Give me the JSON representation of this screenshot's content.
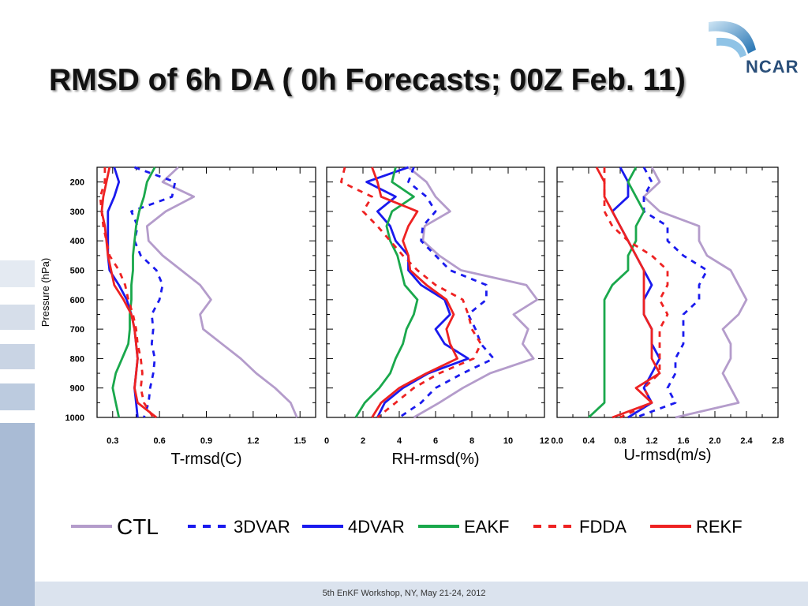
{
  "title": "RMSD of 6h DA ( 0h Forecasts; 00Z Feb. 11)",
  "logo_text": "NCAR",
  "footer": "5th EnKF Workshop, NY, May 21-24, 2012",
  "colors": {
    "CTL": "#b49ccb",
    "3DVAR": "#1a1aee",
    "4DVAR": "#1a1aee",
    "EAKF": "#1aa84c",
    "FDDA": "#ee2222",
    "REKF": "#ee2222"
  },
  "legend": [
    {
      "name": "CTL",
      "dash": false
    },
    {
      "name": "3DVAR",
      "dash": true
    },
    {
      "name": "4DVAR",
      "dash": false
    },
    {
      "name": "EAKF",
      "dash": false
    },
    {
      "name": "FDDA",
      "dash": true
    },
    {
      "name": "REKF",
      "dash": false
    }
  ],
  "chart_data": [
    {
      "type": "line",
      "xlabel": "T-rmsd(C)",
      "ylabel": "Pressure (hPa)",
      "xlim": [
        0.2,
        1.6
      ],
      "xticks": [
        "0.3",
        "0.6",
        "0.9",
        "1.2",
        "1.5"
      ],
      "xtick_values": [
        0.3,
        0.6,
        0.9,
        1.2,
        1.5
      ],
      "ylim": [
        150,
        1000
      ],
      "yticks": [
        "200",
        "300",
        "400",
        "500",
        "600",
        "700",
        "800",
        "900",
        "1000"
      ],
      "y": [
        150,
        200,
        250,
        300,
        350,
        400,
        450,
        500,
        550,
        600,
        650,
        700,
        750,
        800,
        850,
        900,
        950,
        1000
      ],
      "series": [
        {
          "name": "CTL",
          "values": [
            0.72,
            0.62,
            0.82,
            0.64,
            0.52,
            0.53,
            0.62,
            0.74,
            0.86,
            0.93,
            0.86,
            0.88,
            1.0,
            1.12,
            1.22,
            1.34,
            1.44,
            1.48
          ]
        },
        {
          "name": "3DVAR",
          "values": [
            0.44,
            0.7,
            0.68,
            0.42,
            0.46,
            0.44,
            0.48,
            0.58,
            0.62,
            0.6,
            0.55,
            0.56,
            0.55,
            0.57,
            0.56,
            0.54,
            0.53,
            0.5
          ]
        },
        {
          "name": "4DVAR",
          "values": [
            0.31,
            0.34,
            0.31,
            0.27,
            0.27,
            0.27,
            0.27,
            0.28,
            0.34,
            0.39,
            0.42,
            0.44,
            0.45,
            0.46,
            0.45,
            0.44,
            0.45,
            0.46
          ]
        },
        {
          "name": "EAKF",
          "values": [
            0.57,
            0.52,
            0.5,
            0.47,
            0.45,
            0.44,
            0.43,
            0.43,
            0.42,
            0.42,
            0.41,
            0.41,
            0.4,
            0.36,
            0.32,
            0.3,
            0.32,
            0.34
          ]
        },
        {
          "name": "FDDA",
          "values": [
            0.25,
            0.25,
            0.22,
            0.23,
            0.24,
            0.26,
            0.28,
            0.34,
            0.38,
            0.4,
            0.43,
            0.45,
            0.46,
            0.48,
            0.49,
            0.48,
            0.5,
            0.56
          ]
        },
        {
          "name": "REKF",
          "values": [
            0.28,
            0.26,
            0.24,
            0.23,
            0.25,
            0.26,
            0.27,
            0.29,
            0.31,
            0.37,
            0.42,
            0.44,
            0.45,
            0.46,
            0.45,
            0.44,
            0.46,
            0.58
          ]
        }
      ]
    },
    {
      "type": "line",
      "xlabel": "RH-rmsd(%)",
      "xlim": [
        0,
        12
      ],
      "xticks": [
        "0",
        "2",
        "4",
        "6",
        "8",
        "10",
        "12"
      ],
      "xtick_values": [
        0,
        2,
        4,
        6,
        8,
        10,
        12
      ],
      "ylim": [
        150,
        1000
      ],
      "y": [
        150,
        200,
        250,
        300,
        350,
        400,
        450,
        500,
        550,
        600,
        650,
        700,
        750,
        800,
        850,
        900,
        950,
        1000
      ],
      "series": [
        {
          "name": "CTL",
          "values": [
            4.5,
            5.5,
            6.0,
            6.8,
            5.4,
            5.3,
            6.2,
            7.4,
            11.0,
            11.6,
            10.3,
            11.1,
            10.8,
            11.4,
            9.0,
            7.5,
            6.2,
            4.8
          ]
        },
        {
          "name": "3DVAR",
          "values": [
            4.8,
            4.5,
            5.5,
            6.0,
            5.3,
            5.2,
            6.0,
            6.8,
            8.8,
            8.8,
            7.8,
            8.2,
            8.5,
            9.2,
            7.5,
            6.0,
            5.2,
            4.0
          ]
        },
        {
          "name": "4DVAR",
          "values": [
            4.5,
            2.2,
            3.8,
            2.8,
            3.5,
            3.8,
            4.5,
            4.5,
            5.2,
            6.5,
            6.8,
            6.0,
            6.5,
            7.8,
            5.6,
            4.2,
            3.2,
            2.8
          ]
        },
        {
          "name": "EAKF",
          "values": [
            3.8,
            3.6,
            4.8,
            3.6,
            3.3,
            3.5,
            3.9,
            4.1,
            4.3,
            5.0,
            4.8,
            4.4,
            4.2,
            3.8,
            3.5,
            2.9,
            2.1,
            1.6
          ]
        },
        {
          "name": "FDDA",
          "values": [
            1.0,
            0.8,
            2.5,
            2.0,
            2.8,
            3.5,
            4.2,
            5.0,
            6.0,
            7.5,
            7.8,
            8.0,
            8.5,
            8.1,
            6.2,
            4.8,
            3.8,
            2.8
          ]
        },
        {
          "name": "REKF",
          "values": [
            2.5,
            2.8,
            3.0,
            5.0,
            4.5,
            4.2,
            4.5,
            4.6,
            5.5,
            6.6,
            7.0,
            6.6,
            6.8,
            7.2,
            5.5,
            4.0,
            3.0,
            2.5
          ]
        }
      ]
    },
    {
      "type": "line",
      "xlabel": "U-rmsd(m/s)",
      "xlim": [
        0.0,
        2.8
      ],
      "xticks": [
        "0.0",
        "0.4",
        "0.8",
        "1.2",
        "1.6",
        "2.0",
        "2.4",
        "2.8"
      ],
      "xtick_values": [
        0.0,
        0.4,
        0.8,
        1.2,
        1.6,
        2.0,
        2.4,
        2.8
      ],
      "ylim": [
        150,
        1000
      ],
      "y": [
        150,
        200,
        250,
        300,
        350,
        400,
        450,
        500,
        550,
        600,
        650,
        700,
        750,
        800,
        850,
        900,
        950,
        1000
      ],
      "series": [
        {
          "name": "CTL",
          "values": [
            1.2,
            1.3,
            1.1,
            1.3,
            1.8,
            1.8,
            1.9,
            2.2,
            2.3,
            2.4,
            2.3,
            2.1,
            2.2,
            2.2,
            2.1,
            2.2,
            2.3,
            1.5
          ]
        },
        {
          "name": "3DVAR",
          "values": [
            1.1,
            1.2,
            1.1,
            1.1,
            1.4,
            1.4,
            1.6,
            1.9,
            1.8,
            1.8,
            1.6,
            1.6,
            1.6,
            1.5,
            1.5,
            1.4,
            1.5,
            1.0
          ]
        },
        {
          "name": "4DVAR",
          "values": [
            0.8,
            0.9,
            0.9,
            0.7,
            0.8,
            0.9,
            1.0,
            1.1,
            1.2,
            1.1,
            1.1,
            1.2,
            1.2,
            1.3,
            1.2,
            1.1,
            1.2,
            0.9
          ]
        },
        {
          "name": "EAKF",
          "values": [
            1.0,
            0.9,
            1.0,
            1.1,
            1.0,
            1.0,
            0.9,
            0.9,
            0.7,
            0.6,
            0.6,
            0.6,
            0.6,
            0.6,
            0.6,
            0.6,
            0.6,
            0.4
          ]
        },
        {
          "name": "FDDA",
          "values": [
            0.6,
            0.6,
            0.6,
            0.6,
            0.7,
            0.9,
            1.2,
            1.4,
            1.4,
            1.3,
            1.4,
            1.3,
            1.3,
            1.3,
            1.3,
            1.1,
            1.2,
            0.8
          ]
        },
        {
          "name": "REKF",
          "values": [
            0.5,
            0.6,
            0.6,
            0.7,
            0.8,
            0.9,
            1.0,
            1.1,
            1.1,
            1.1,
            1.1,
            1.2,
            1.2,
            1.2,
            1.3,
            1.0,
            1.2,
            0.7
          ]
        }
      ]
    }
  ]
}
